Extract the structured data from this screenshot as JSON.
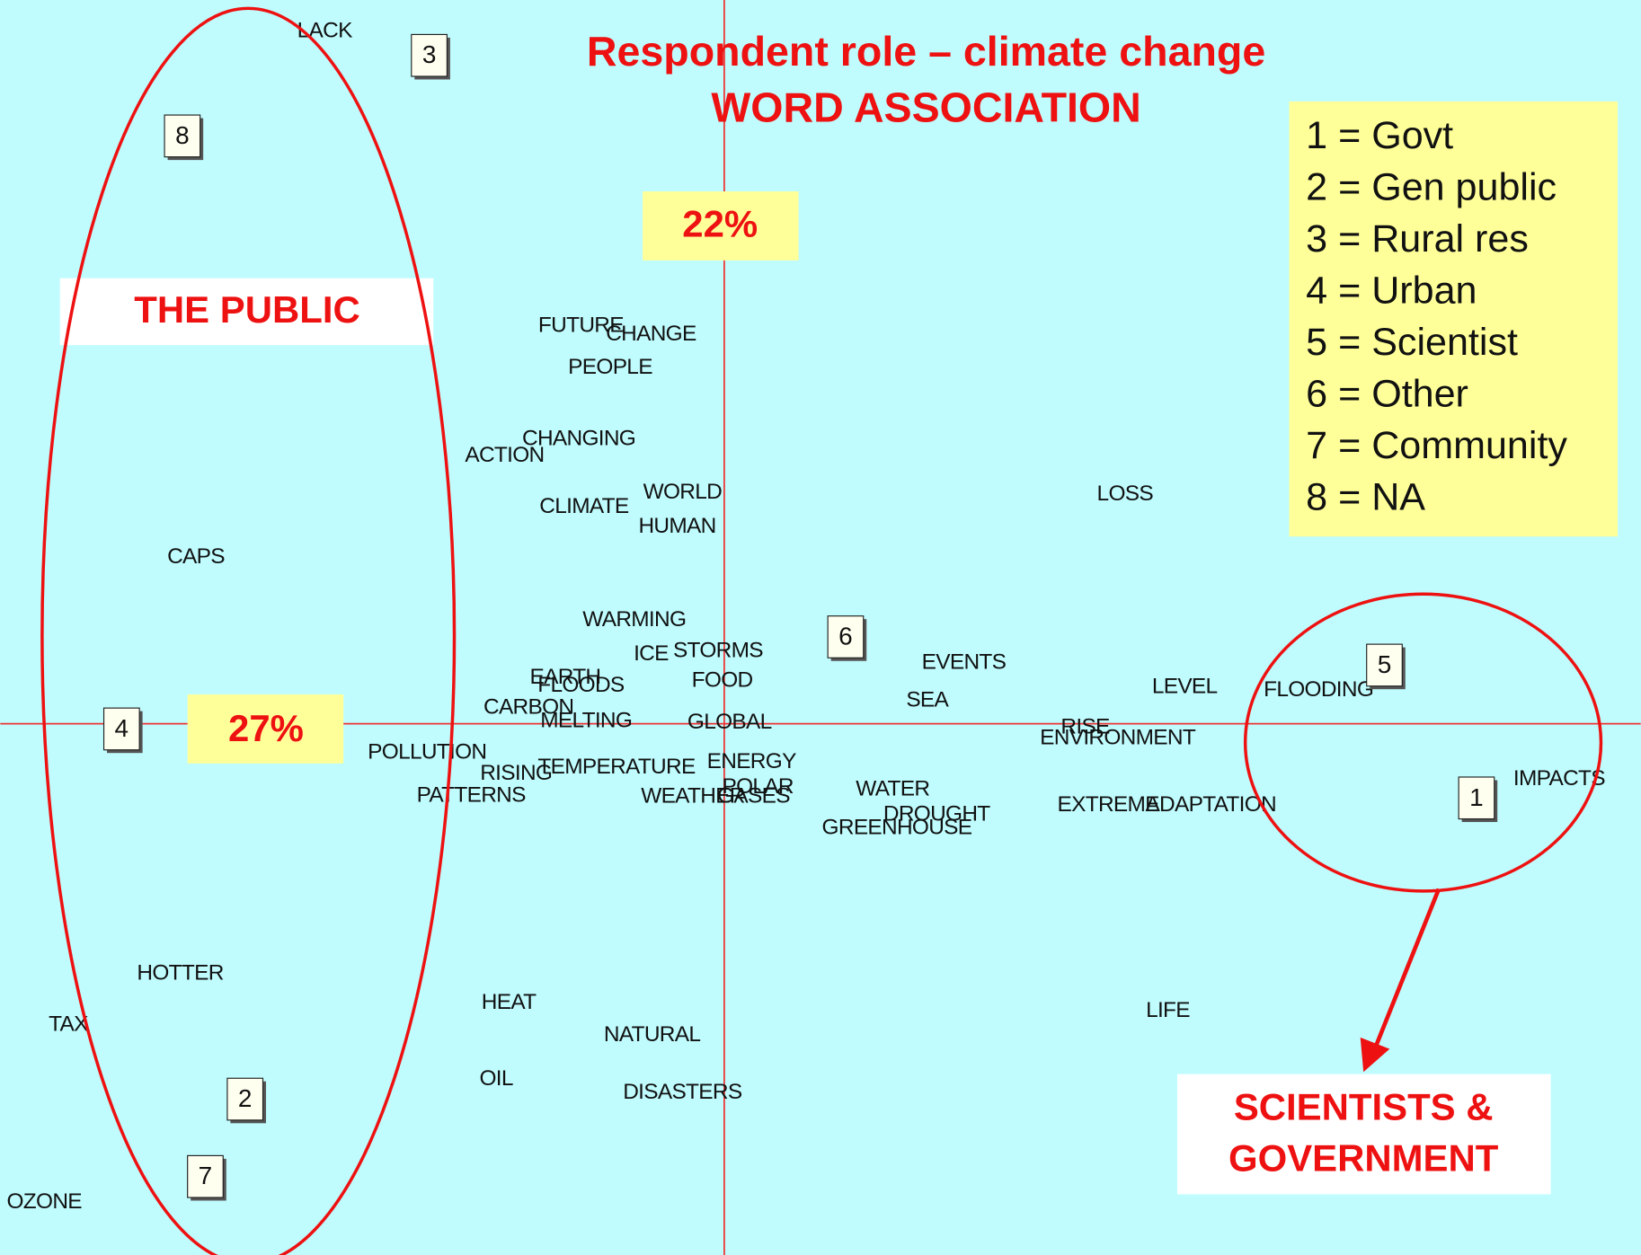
{
  "title": [
    "Respondent role – climate change",
    "WORD ASSOCIATION"
  ],
  "legend": [
    "1 = Govt",
    "2 = Gen public",
    "3 = Rural res",
    "4 = Urban",
    "5 = Scientist",
    "6 = Other",
    "7 = Community",
    "8 = NA"
  ],
  "percent_top": "22%",
  "percent_left": "27%",
  "group_public": "THE PUBLIC",
  "group_sci": [
    "SCIENTISTS &",
    "GOVERNMENT"
  ],
  "markers": [
    "3",
    "8",
    "6",
    "5",
    "4",
    "1",
    "2",
    "7"
  ],
  "words": [
    "LACK",
    "FUTURE",
    "CHANGE",
    "PEOPLE",
    "ACTION",
    "CHANGING",
    "CLIMATE",
    "WORLD",
    "HUMAN",
    "LOSS",
    "CAPS",
    "WARMING",
    "ICE",
    "STORMS",
    "EVENTS",
    "EARTH",
    "FLOODS",
    "FOOD",
    "SEA",
    "LEVEL",
    "FLOODING",
    "CARBON",
    "MELTING",
    "GLOBAL",
    "RISE",
    "ENVIRONMENT",
    "POLLUTION",
    "RISING",
    "TEMPERATURE",
    "ENERGY",
    "PATTERNS",
    "WEATHER",
    "POLAR",
    "GASES",
    "WATER",
    "DROUGHT",
    "GREENHOUSE",
    "EXTREME",
    "ADAPTATION",
    "IMPACTS",
    "HOTTER",
    "HEAT",
    "TAX",
    "LIFE",
    "NATURAL",
    "OIL",
    "DISASTERS",
    "OZONE"
  ]
}
